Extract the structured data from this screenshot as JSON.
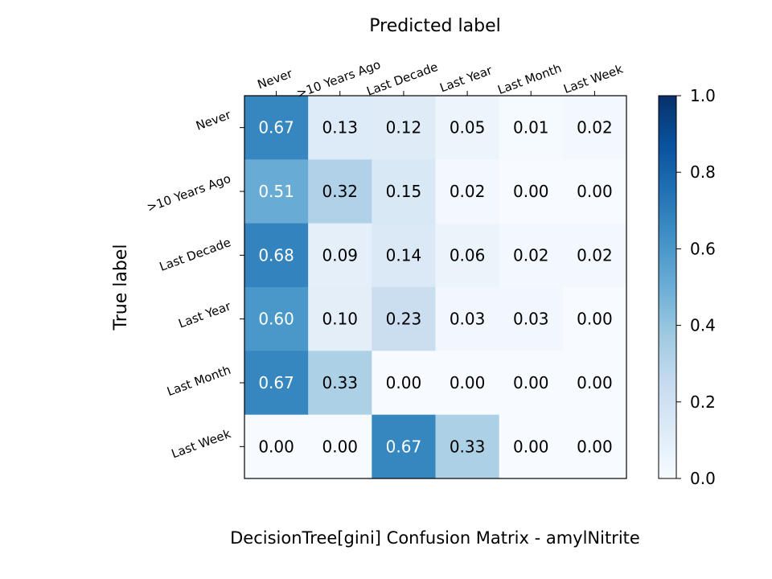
{
  "chart_data": {
    "type": "heatmap",
    "title": "DecisionTree[gini]  Confusion Matrix - amylNitrite",
    "xlabel": "Predicted label",
    "ylabel": "True label",
    "x_categories": [
      "Never",
      ">10 Years Ago",
      "Last Decade",
      "Last Year",
      "Last Month",
      "Last Week"
    ],
    "y_categories": [
      "Never",
      ">10 Years Ago",
      "Last Decade",
      "Last Year",
      "Last Month",
      "Last Week"
    ],
    "values": [
      [
        0.67,
        0.13,
        0.12,
        0.05,
        0.01,
        0.02
      ],
      [
        0.51,
        0.32,
        0.15,
        0.02,
        0.0,
        0.0
      ],
      [
        0.68,
        0.09,
        0.14,
        0.06,
        0.02,
        0.02
      ],
      [
        0.6,
        0.1,
        0.23,
        0.03,
        0.03,
        0.0
      ],
      [
        0.67,
        0.33,
        0.0,
        0.0,
        0.0,
        0.0
      ],
      [
        0.0,
        0.0,
        0.67,
        0.33,
        0.0,
        0.0
      ]
    ],
    "colorbar": {
      "range": [
        0.0,
        1.0
      ],
      "ticks": [
        "0.0",
        "0.2",
        "0.4",
        "0.6",
        "0.8",
        "1.0"
      ],
      "colormap": "Blues"
    }
  }
}
